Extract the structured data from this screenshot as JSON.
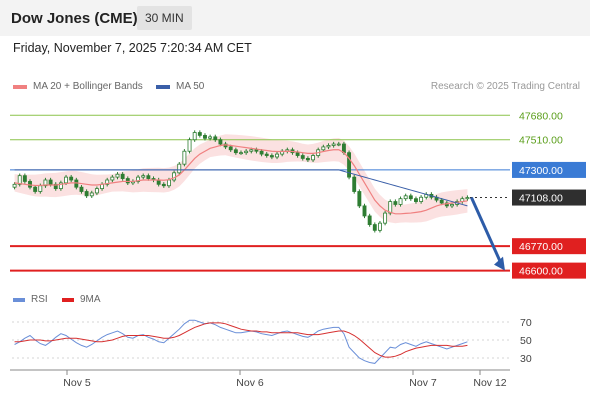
{
  "header": {
    "title": "Dow Jones (CME)",
    "interval": "30 MIN"
  },
  "datetime": "Friday, November 7, 2025 7:20:34 AM CET",
  "legend": {
    "ma20_label": "MA 20 + Bollinger Bands",
    "ma50_label": "MA 50",
    "credit": "Research © 2025 Trading Central",
    "rsi_label": "RSI",
    "rsi_ma_label": "9MA"
  },
  "colors": {
    "ma20": "#f08080",
    "ma50": "#3a5fa8",
    "bollinger_fill": "#fbdede",
    "candle": "#2e7d32",
    "resistance": "#8bc34a",
    "pivot": "#3a7bd5",
    "support": "#e02020",
    "current": "#333333",
    "arrow": "#2d5ca8",
    "rsi": "#6a8fd8",
    "rsi_ma": "#d63030"
  },
  "chart_data": [
    {
      "type": "candlestick",
      "title": "Dow Jones (CME)",
      "ylim": [
        46500,
        47800
      ],
      "x_ticks": [
        "Nov 5",
        "Nov 6",
        "Nov 7",
        "Nov 12"
      ],
      "levels": [
        {
          "label": "47680.00",
          "value": 47680,
          "kind": "resistance"
        },
        {
          "label": "47510.00",
          "value": 47510,
          "kind": "resistance"
        },
        {
          "label": "47300.00",
          "value": 47300,
          "kind": "pivot"
        },
        {
          "label": "47108.00",
          "value": 47108,
          "kind": "current"
        },
        {
          "label": "46770.00",
          "value": 46770,
          "kind": "support"
        },
        {
          "label": "46600.00",
          "value": 46600,
          "kind": "support"
        }
      ],
      "close": [
        47200,
        47260,
        47220,
        47180,
        47150,
        47190,
        47230,
        47200,
        47170,
        47210,
        47250,
        47230,
        47180,
        47150,
        47120,
        47140,
        47170,
        47200,
        47230,
        47250,
        47270,
        47240,
        47210,
        47220,
        47250,
        47260,
        47240,
        47230,
        47200,
        47190,
        47230,
        47280,
        47340,
        47430,
        47510,
        47560,
        47540,
        47520,
        47530,
        47510,
        47480,
        47460,
        47440,
        47420,
        47420,
        47430,
        47440,
        47430,
        47410,
        47400,
        47390,
        47410,
        47430,
        47440,
        47420,
        47400,
        47380,
        47370,
        47400,
        47440,
        47460,
        47470,
        47480,
        47480,
        47420,
        47250,
        47150,
        47050,
        46980,
        46920,
        46880,
        46930,
        47000,
        47080,
        47060,
        47100,
        47120,
        47100,
        47080,
        47110,
        47130,
        47110,
        47090,
        47070,
        47050,
        47060,
        47080,
        47100,
        47108
      ],
      "ma20": [
        47210,
        47205,
        47200,
        47195,
        47192,
        47192,
        47195,
        47195,
        47195,
        47200,
        47205,
        47210,
        47210,
        47205,
        47200,
        47195,
        47195,
        47200,
        47205,
        47210,
        47215,
        47220,
        47220,
        47220,
        47225,
        47230,
        47230,
        47230,
        47230,
        47228,
        47232,
        47245,
        47265,
        47300,
        47340,
        47380,
        47410,
        47430,
        47450,
        47460,
        47470,
        47475,
        47470,
        47465,
        47460,
        47455,
        47450,
        47445,
        47440,
        47435,
        47430,
        47428,
        47428,
        47430,
        47428,
        47425,
        47420,
        47415,
        47415,
        47420,
        47428,
        47435,
        47440,
        47440,
        47420,
        47380,
        47330,
        47270,
        47210,
        47150,
        47090,
        47050,
        47020,
        47005,
        46995,
        46995,
        46998,
        47000,
        47005,
        47010,
        47020,
        47035,
        47050,
        47060,
        47065,
        47070,
        47075,
        47080,
        47085
      ],
      "ma50": [
        47300,
        47300,
        47300,
        47300,
        47300,
        47300,
        47300,
        47300,
        47300,
        47300,
        47300,
        47300,
        47300,
        47300,
        47300,
        47300,
        47300,
        47300,
        47300,
        47300,
        47300,
        47300,
        47300,
        47300,
        47300,
        47300,
        47300,
        47300,
        47300,
        47300,
        47300,
        47300,
        47300,
        47300,
        47300,
        47300,
        47300,
        47300,
        47300,
        47300,
        47300,
        47300,
        47300,
        47300,
        47300,
        47300,
        47300,
        47300,
        47300,
        47300,
        47300,
        47300,
        47300,
        47300,
        47300,
        47300,
        47300,
        47300,
        47300,
        47300,
        47300,
        47300,
        47300,
        47300,
        47290,
        47280,
        47270,
        47260,
        47250,
        47240,
        47230,
        47220,
        47210,
        47200,
        47190,
        47180,
        47170,
        47160,
        47150,
        47140,
        47130,
        47120,
        47110,
        47100,
        47090,
        47080,
        47070,
        47060,
        47050
      ],
      "projection": {
        "from": 47108,
        "to": 46600
      }
    },
    {
      "type": "line",
      "title": "RSI",
      "ylim": [
        20,
        80
      ],
      "y_ticks": [
        70,
        50,
        30
      ],
      "series": [
        {
          "name": "RSI",
          "values": [
            45,
            48,
            52,
            55,
            50,
            46,
            44,
            48,
            53,
            57,
            55,
            51,
            47,
            44,
            42,
            45,
            49,
            53,
            56,
            58,
            60,
            57,
            53,
            52,
            55,
            56,
            53,
            51,
            48,
            47,
            52,
            57,
            62,
            68,
            72,
            72,
            70,
            68,
            69,
            67,
            64,
            62,
            60,
            58,
            58,
            59,
            60,
            59,
            57,
            56,
            55,
            57,
            59,
            60,
            58,
            56,
            54,
            53,
            56,
            60,
            62,
            63,
            64,
            64,
            57,
            42,
            36,
            30,
            27,
            25,
            24,
            30,
            36,
            42,
            41,
            45,
            47,
            45,
            43,
            46,
            48,
            46,
            44,
            42,
            40,
            42,
            44,
            46,
            48
          ]
        },
        {
          "name": "9MA",
          "values": [
            48,
            48,
            49,
            50,
            50,
            50,
            49,
            49,
            50,
            51,
            52,
            52,
            52,
            51,
            50,
            49,
            48,
            48,
            49,
            50,
            52,
            54,
            55,
            55,
            55,
            55,
            55,
            54,
            53,
            52,
            52,
            53,
            55,
            58,
            61,
            64,
            66,
            68,
            69,
            69,
            69,
            68,
            66,
            64,
            62,
            61,
            60,
            60,
            59,
            59,
            58,
            58,
            58,
            58,
            58,
            58,
            57,
            56,
            56,
            56,
            57,
            58,
            59,
            60,
            60,
            58,
            55,
            51,
            46,
            41,
            36,
            33,
            31,
            31,
            32,
            34,
            37,
            39,
            41,
            42,
            43,
            44,
            44,
            44,
            44,
            43,
            43,
            43,
            44
          ]
        }
      ]
    }
  ]
}
